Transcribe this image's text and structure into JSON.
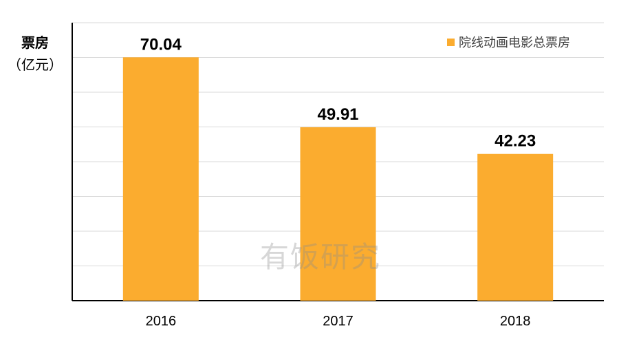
{
  "chart_data": {
    "type": "bar",
    "categories": [
      "2016",
      "2017",
      "2018"
    ],
    "series": [
      {
        "name": "院线动画电影总票房",
        "values": [
          70.04,
          49.91,
          42.23
        ]
      }
    ],
    "value_labels": [
      "70.04",
      "49.91",
      "42.23"
    ],
    "ylabel": {
      "line1": "票房",
      "line2": "（亿元）"
    },
    "ylim": [
      0,
      80
    ],
    "grid": true,
    "legend_position": "top-right",
    "bar_color": "#FBAC2F"
  },
  "watermark": "有饭研究"
}
